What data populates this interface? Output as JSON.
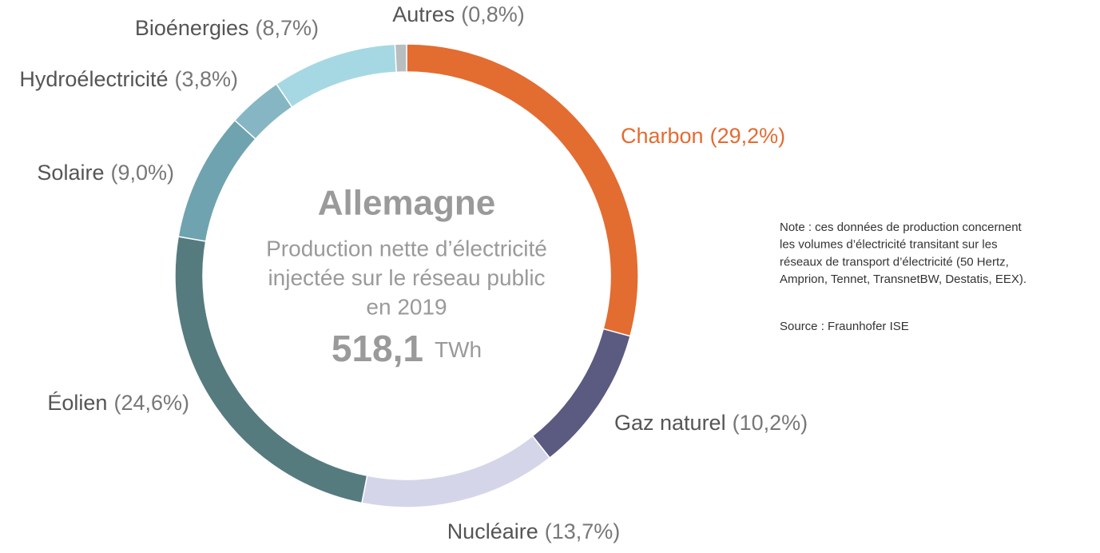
{
  "chart_data": {
    "type": "donut",
    "title": "Allemagne",
    "subtitle_lines": [
      "Production nette d’électricité",
      "injectée sur le réseau public",
      "en 2019"
    ],
    "center_value": "518,1",
    "center_unit": "TWh",
    "categories": [
      "Charbon",
      "Gaz naturel",
      "Nucléaire",
      "Éolien",
      "Solaire",
      "Hydroélectricité",
      "Bioénergies",
      "Autres"
    ],
    "values": [
      29.2,
      10.2,
      13.7,
      24.6,
      9.0,
      3.8,
      8.7,
      0.8
    ],
    "value_labels": [
      "(29,2%)",
      "(10,2%)",
      "(13,7%)",
      "(24,6%)",
      "(9,0%)",
      "(3,8%)",
      "(8,7%)",
      "(0,8%)"
    ],
    "colors": [
      "#e36c31",
      "#5b5a80",
      "#d5d5ea",
      "#557b7f",
      "#6fa3b0",
      "#86b6c3",
      "#a6d8e3",
      "#b8bdbf"
    ],
    "note_lines": [
      "Note : ces données de production concernent",
      "les volumes d’électricité transitant sur les",
      "réseaux de transport d’électricité (50 Hertz,",
      "Amprion, Tennet, TransnetBW, Destatis, EEX)."
    ],
    "source": "Source : Fraunhofer ISE"
  }
}
